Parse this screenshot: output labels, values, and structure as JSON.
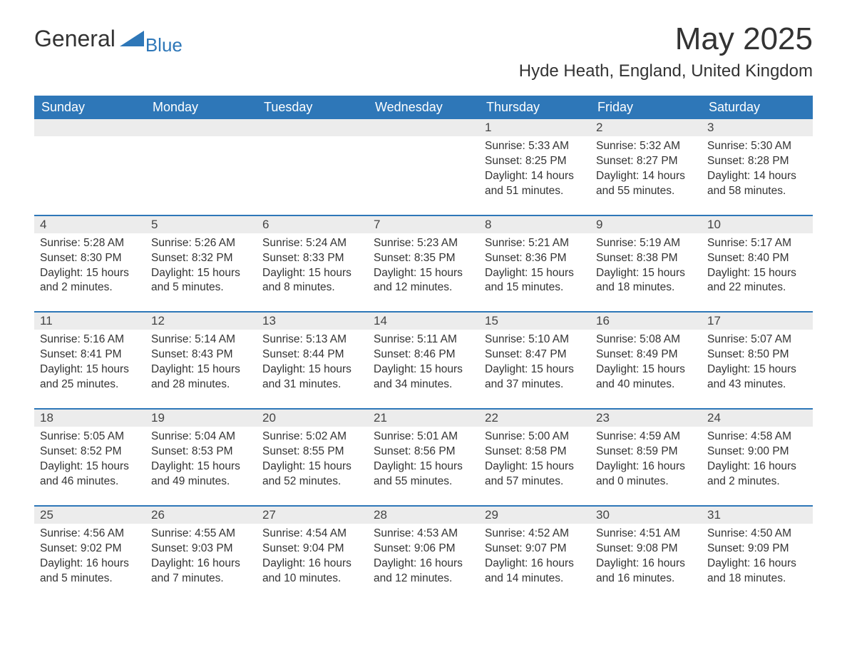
{
  "logo": {
    "main": "General",
    "sub": "Blue"
  },
  "title": "May 2025",
  "location": "Hyde Heath, England, United Kingdom",
  "colors": {
    "header_bg": "#2e77b8",
    "header_text": "#ffffff",
    "daynum_bg": "#ececec",
    "text": "#333333",
    "row_border": "#2e77b8"
  },
  "typography": {
    "title_fontsize": 44,
    "location_fontsize": 24,
    "dayheader_fontsize": 18,
    "daynum_fontsize": 17,
    "content_fontsize": 15.5
  },
  "day_headers": [
    "Sunday",
    "Monday",
    "Tuesday",
    "Wednesday",
    "Thursday",
    "Friday",
    "Saturday"
  ],
  "weeks": [
    [
      {
        "num": "",
        "sunrise": "",
        "sunset": "",
        "daylight": ""
      },
      {
        "num": "",
        "sunrise": "",
        "sunset": "",
        "daylight": ""
      },
      {
        "num": "",
        "sunrise": "",
        "sunset": "",
        "daylight": ""
      },
      {
        "num": "",
        "sunrise": "",
        "sunset": "",
        "daylight": ""
      },
      {
        "num": "1",
        "sunrise": "Sunrise: 5:33 AM",
        "sunset": "Sunset: 8:25 PM",
        "daylight": "Daylight: 14 hours and 51 minutes."
      },
      {
        "num": "2",
        "sunrise": "Sunrise: 5:32 AM",
        "sunset": "Sunset: 8:27 PM",
        "daylight": "Daylight: 14 hours and 55 minutes."
      },
      {
        "num": "3",
        "sunrise": "Sunrise: 5:30 AM",
        "sunset": "Sunset: 8:28 PM",
        "daylight": "Daylight: 14 hours and 58 minutes."
      }
    ],
    [
      {
        "num": "4",
        "sunrise": "Sunrise: 5:28 AM",
        "sunset": "Sunset: 8:30 PM",
        "daylight": "Daylight: 15 hours and 2 minutes."
      },
      {
        "num": "5",
        "sunrise": "Sunrise: 5:26 AM",
        "sunset": "Sunset: 8:32 PM",
        "daylight": "Daylight: 15 hours and 5 minutes."
      },
      {
        "num": "6",
        "sunrise": "Sunrise: 5:24 AM",
        "sunset": "Sunset: 8:33 PM",
        "daylight": "Daylight: 15 hours and 8 minutes."
      },
      {
        "num": "7",
        "sunrise": "Sunrise: 5:23 AM",
        "sunset": "Sunset: 8:35 PM",
        "daylight": "Daylight: 15 hours and 12 minutes."
      },
      {
        "num": "8",
        "sunrise": "Sunrise: 5:21 AM",
        "sunset": "Sunset: 8:36 PM",
        "daylight": "Daylight: 15 hours and 15 minutes."
      },
      {
        "num": "9",
        "sunrise": "Sunrise: 5:19 AM",
        "sunset": "Sunset: 8:38 PM",
        "daylight": "Daylight: 15 hours and 18 minutes."
      },
      {
        "num": "10",
        "sunrise": "Sunrise: 5:17 AM",
        "sunset": "Sunset: 8:40 PM",
        "daylight": "Daylight: 15 hours and 22 minutes."
      }
    ],
    [
      {
        "num": "11",
        "sunrise": "Sunrise: 5:16 AM",
        "sunset": "Sunset: 8:41 PM",
        "daylight": "Daylight: 15 hours and 25 minutes."
      },
      {
        "num": "12",
        "sunrise": "Sunrise: 5:14 AM",
        "sunset": "Sunset: 8:43 PM",
        "daylight": "Daylight: 15 hours and 28 minutes."
      },
      {
        "num": "13",
        "sunrise": "Sunrise: 5:13 AM",
        "sunset": "Sunset: 8:44 PM",
        "daylight": "Daylight: 15 hours and 31 minutes."
      },
      {
        "num": "14",
        "sunrise": "Sunrise: 5:11 AM",
        "sunset": "Sunset: 8:46 PM",
        "daylight": "Daylight: 15 hours and 34 minutes."
      },
      {
        "num": "15",
        "sunrise": "Sunrise: 5:10 AM",
        "sunset": "Sunset: 8:47 PM",
        "daylight": "Daylight: 15 hours and 37 minutes."
      },
      {
        "num": "16",
        "sunrise": "Sunrise: 5:08 AM",
        "sunset": "Sunset: 8:49 PM",
        "daylight": "Daylight: 15 hours and 40 minutes."
      },
      {
        "num": "17",
        "sunrise": "Sunrise: 5:07 AM",
        "sunset": "Sunset: 8:50 PM",
        "daylight": "Daylight: 15 hours and 43 minutes."
      }
    ],
    [
      {
        "num": "18",
        "sunrise": "Sunrise: 5:05 AM",
        "sunset": "Sunset: 8:52 PM",
        "daylight": "Daylight: 15 hours and 46 minutes."
      },
      {
        "num": "19",
        "sunrise": "Sunrise: 5:04 AM",
        "sunset": "Sunset: 8:53 PM",
        "daylight": "Daylight: 15 hours and 49 minutes."
      },
      {
        "num": "20",
        "sunrise": "Sunrise: 5:02 AM",
        "sunset": "Sunset: 8:55 PM",
        "daylight": "Daylight: 15 hours and 52 minutes."
      },
      {
        "num": "21",
        "sunrise": "Sunrise: 5:01 AM",
        "sunset": "Sunset: 8:56 PM",
        "daylight": "Daylight: 15 hours and 55 minutes."
      },
      {
        "num": "22",
        "sunrise": "Sunrise: 5:00 AM",
        "sunset": "Sunset: 8:58 PM",
        "daylight": "Daylight: 15 hours and 57 minutes."
      },
      {
        "num": "23",
        "sunrise": "Sunrise: 4:59 AM",
        "sunset": "Sunset: 8:59 PM",
        "daylight": "Daylight: 16 hours and 0 minutes."
      },
      {
        "num": "24",
        "sunrise": "Sunrise: 4:58 AM",
        "sunset": "Sunset: 9:00 PM",
        "daylight": "Daylight: 16 hours and 2 minutes."
      }
    ],
    [
      {
        "num": "25",
        "sunrise": "Sunrise: 4:56 AM",
        "sunset": "Sunset: 9:02 PM",
        "daylight": "Daylight: 16 hours and 5 minutes."
      },
      {
        "num": "26",
        "sunrise": "Sunrise: 4:55 AM",
        "sunset": "Sunset: 9:03 PM",
        "daylight": "Daylight: 16 hours and 7 minutes."
      },
      {
        "num": "27",
        "sunrise": "Sunrise: 4:54 AM",
        "sunset": "Sunset: 9:04 PM",
        "daylight": "Daylight: 16 hours and 10 minutes."
      },
      {
        "num": "28",
        "sunrise": "Sunrise: 4:53 AM",
        "sunset": "Sunset: 9:06 PM",
        "daylight": "Daylight: 16 hours and 12 minutes."
      },
      {
        "num": "29",
        "sunrise": "Sunrise: 4:52 AM",
        "sunset": "Sunset: 9:07 PM",
        "daylight": "Daylight: 16 hours and 14 minutes."
      },
      {
        "num": "30",
        "sunrise": "Sunrise: 4:51 AM",
        "sunset": "Sunset: 9:08 PM",
        "daylight": "Daylight: 16 hours and 16 minutes."
      },
      {
        "num": "31",
        "sunrise": "Sunrise: 4:50 AM",
        "sunset": "Sunset: 9:09 PM",
        "daylight": "Daylight: 16 hours and 18 minutes."
      }
    ]
  ]
}
